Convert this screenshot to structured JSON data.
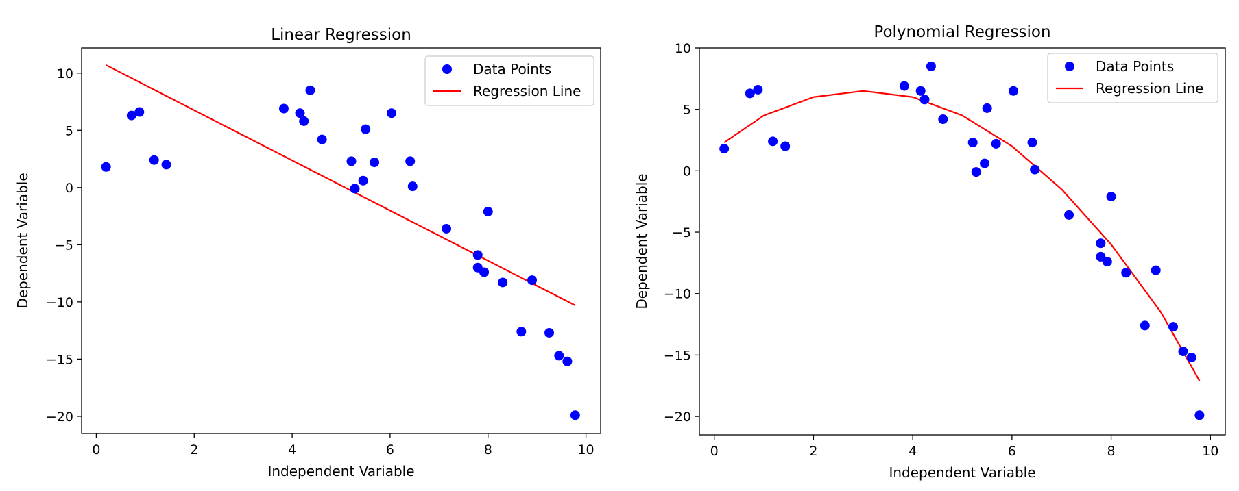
{
  "chart_data": [
    {
      "type": "scatter",
      "title": "Linear Regression",
      "xlabel": "Independent Variable",
      "ylabel": "Dependent Variable",
      "xlim": [
        -0.3,
        10.3
      ],
      "ylim": [
        -21.5,
        12.2
      ],
      "xticks": [
        0,
        2,
        4,
        6,
        8,
        10
      ],
      "yticks": [
        10,
        5,
        0,
        -5,
        -10,
        -15,
        -20
      ],
      "xtick_labels": [
        "0",
        "2",
        "4",
        "6",
        "8",
        "10"
      ],
      "ytick_labels": [
        "10",
        "5",
        "0",
        "−5",
        "−10",
        "−15",
        "−20"
      ],
      "grid": false,
      "legend_position": "top-right",
      "scatter": {
        "name": "Data Points",
        "color": "#0000ff",
        "x": [
          0.2,
          0.72,
          0.88,
          1.18,
          1.43,
          3.83,
          4.16,
          4.24,
          4.37,
          4.61,
          5.21,
          5.28,
          5.45,
          5.5,
          5.68,
          6.03,
          6.41,
          6.46,
          7.15,
          7.79,
          7.79,
          7.92,
          8.0,
          8.3,
          8.68,
          8.9,
          9.25,
          9.45,
          9.62,
          9.78
        ],
        "y": [
          1.8,
          6.3,
          6.6,
          2.4,
          2.0,
          6.9,
          6.5,
          5.8,
          8.5,
          4.2,
          2.3,
          -0.1,
          0.6,
          5.1,
          2.2,
          6.5,
          2.3,
          0.1,
          -3.6,
          -5.9,
          -7.0,
          -7.4,
          -2.1,
          -8.3,
          -12.6,
          -8.1,
          -12.7,
          -14.7,
          -15.2,
          -19.9
        ]
      },
      "line": {
        "name": "Regression Line",
        "color": "#ff0000",
        "x": [
          0.2,
          9.78
        ],
        "y": [
          10.7,
          -10.3
        ]
      }
    },
    {
      "type": "scatter",
      "title": "Polynomial Regression",
      "xlabel": "Independent Variable",
      "ylabel": "Dependent Variable",
      "xlim": [
        -0.3,
        10.3
      ],
      "ylim": [
        -21.5,
        10.0
      ],
      "xticks": [
        0,
        2,
        4,
        6,
        8,
        10
      ],
      "yticks": [
        10,
        5,
        0,
        -5,
        -10,
        -15,
        -20
      ],
      "xtick_labels": [
        "0",
        "2",
        "4",
        "6",
        "8",
        "10"
      ],
      "ytick_labels": [
        "10",
        "5",
        "0",
        "−5",
        "−10",
        "−15",
        "−20"
      ],
      "grid": false,
      "legend_position": "top-right",
      "scatter": {
        "name": "Data Points",
        "color": "#0000ff",
        "x": [
          0.2,
          0.72,
          0.88,
          1.18,
          1.43,
          3.83,
          4.16,
          4.24,
          4.37,
          4.61,
          5.21,
          5.28,
          5.45,
          5.5,
          5.68,
          6.03,
          6.41,
          6.46,
          7.15,
          7.79,
          7.79,
          7.92,
          8.0,
          8.3,
          8.68,
          8.9,
          9.25,
          9.45,
          9.62,
          9.78
        ],
        "y": [
          1.8,
          6.3,
          6.6,
          2.4,
          2.0,
          6.9,
          6.5,
          5.8,
          8.5,
          4.2,
          2.3,
          -0.1,
          0.6,
          5.1,
          2.2,
          6.5,
          2.3,
          0.1,
          -3.6,
          -5.9,
          -7.0,
          -7.4,
          -2.1,
          -8.3,
          -12.6,
          -8.1,
          -12.7,
          -14.7,
          -15.2,
          -19.9
        ]
      },
      "line": {
        "name": "Regression Line",
        "color": "#ff0000",
        "x": [
          0.2,
          1.0,
          2.0,
          3.0,
          4.0,
          5.0,
          6.0,
          7.0,
          8.0,
          9.0,
          9.78
        ],
        "y": [
          2.3,
          4.5,
          6.0,
          6.5,
          6.0,
          4.5,
          2.0,
          -1.5,
          -6.0,
          -11.5,
          -17.1
        ]
      }
    }
  ]
}
